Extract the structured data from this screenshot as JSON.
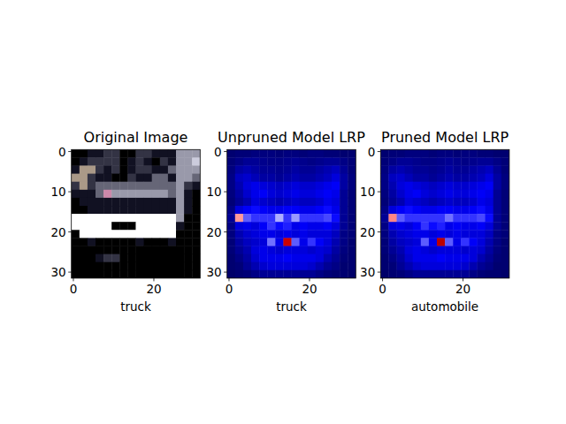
{
  "chart_data": [
    {
      "type": "image",
      "title": "Original Image",
      "x_label": "truck",
      "xlim": [
        -0.5,
        31.5
      ],
      "ylim": [
        31.5,
        -0.5
      ],
      "xticks": [
        0,
        20
      ],
      "yticks": [
        0,
        10,
        20,
        30
      ],
      "cells": [
        [
          "#000",
          "#000",
          "#112",
          "#112",
          "#334",
          "#334",
          "#000",
          "#000",
          "#334",
          "#334",
          "#112",
          "#112",
          "#112",
          "#99a",
          "#99a",
          "#99a"
        ],
        [
          "#000",
          "#112",
          "#334",
          "#334",
          "#334",
          "#334",
          "#000",
          "#112",
          "#334",
          "#112",
          "#000",
          "#334",
          "#112",
          "#99a",
          "#99a",
          "#ccd"
        ],
        [
          "#112",
          "#a98",
          "#a98",
          "#334",
          "#112",
          "#334",
          "#000",
          "#112",
          "#334",
          "#334",
          "#112",
          "#112",
          "#667",
          "#99a",
          "#99a",
          "#99a"
        ],
        [
          "#a98",
          "#a98",
          "#334",
          "#112",
          "#112",
          "#000",
          "#000",
          "#334",
          "#112",
          "#112",
          "#667",
          "#667",
          "#112",
          "#99a",
          "#99a",
          "#667"
        ],
        [
          "#334",
          "#a98",
          "#334",
          "#667",
          "#667",
          "#667",
          "#667",
          "#667",
          "#667",
          "#667",
          "#667",
          "#667",
          "#667",
          "#99a",
          "#334",
          "#112"
        ],
        [
          "#112",
          "#112",
          "#112",
          "#667",
          "#c8a",
          "#99a",
          "#99a",
          "#99a",
          "#99a",
          "#99a",
          "#99a",
          "#99a",
          "#667",
          "#99a",
          "#112",
          "#000"
        ],
        [
          "#000",
          "#112",
          "#112",
          "#112",
          "#112",
          "#112",
          "#112",
          "#112",
          "#112",
          "#112",
          "#112",
          "#112",
          "#112",
          "#99a",
          "#112",
          "#000"
        ],
        [
          "#000",
          "#000",
          "#112",
          "#112",
          "#112",
          "#112",
          "#112",
          "#112",
          "#112",
          "#112",
          "#112",
          "#112",
          "#112",
          "#99a",
          "#112",
          "#000"
        ],
        [
          "#fff",
          "#fff",
          "#fff",
          "#fff",
          "#fff",
          "#fff",
          "#fff",
          "#fff",
          "#fff",
          "#fff",
          "#fff",
          "#fff",
          "#fff",
          "#99a",
          "#000",
          "#000"
        ],
        [
          "#fff",
          "#fff",
          "#fff",
          "#fff",
          "#fff",
          "#000",
          "#000",
          "#000",
          "#fff",
          "#fff",
          "#fff",
          "#fff",
          "#fff",
          "#112",
          "#000",
          "#000"
        ],
        [
          "#000",
          "#fff",
          "#fff",
          "#fff",
          "#fff",
          "#fff",
          "#fff",
          "#fff",
          "#fff",
          "#fff",
          "#fff",
          "#fff",
          "#fff",
          "#000",
          "#000",
          "#000"
        ],
        [
          "#000",
          "#000",
          "#112",
          "#000",
          "#000",
          "#000",
          "#000",
          "#000",
          "#112",
          "#000",
          "#000",
          "#000",
          "#112",
          "#000",
          "#000",
          "#000"
        ],
        [
          "#000",
          "#000",
          "#000",
          "#000",
          "#000",
          "#000",
          "#000",
          "#000",
          "#000",
          "#000",
          "#000",
          "#000",
          "#000",
          "#000",
          "#000",
          "#000"
        ],
        [
          "#000",
          "#000",
          "#000",
          "#112",
          "#334",
          "#334",
          "#000",
          "#000",
          "#000",
          "#000",
          "#000",
          "#000",
          "#000",
          "#000",
          "#000",
          "#000"
        ],
        [
          "#000",
          "#000",
          "#000",
          "#000",
          "#000",
          "#000",
          "#000",
          "#000",
          "#000",
          "#000",
          "#000",
          "#000",
          "#000",
          "#000",
          "#000",
          "#000"
        ],
        [
          "#000",
          "#000",
          "#000",
          "#000",
          "#000",
          "#000",
          "#000",
          "#000",
          "#000",
          "#000",
          "#000",
          "#000",
          "#000",
          "#000",
          "#000",
          "#000"
        ]
      ]
    },
    {
      "type": "heatmap",
      "title": "Unpruned Model LRP",
      "x_label": "truck",
      "xlim": [
        -0.5,
        31.5
      ],
      "ylim": [
        31.5,
        -0.5
      ],
      "xticks": [
        0,
        20
      ],
      "yticks": [
        0,
        10,
        20,
        30
      ],
      "color_range": [
        0,
        1
      ],
      "cells": [
        [
          0.05,
          0.06,
          0.06,
          0.07,
          0.07,
          0.07,
          0.06,
          0.07,
          0.07,
          0.06,
          0.07,
          0.07,
          0.06,
          0.06,
          0.05,
          0.05
        ],
        [
          0.06,
          0.08,
          0.1,
          0.1,
          0.09,
          0.08,
          0.08,
          0.09,
          0.1,
          0.09,
          0.08,
          0.09,
          0.1,
          0.1,
          0.08,
          0.06
        ],
        [
          0.07,
          0.12,
          0.14,
          0.12,
          0.1,
          0.1,
          0.09,
          0.1,
          0.12,
          0.1,
          0.1,
          0.12,
          0.14,
          0.16,
          0.1,
          0.06
        ],
        [
          0.08,
          0.16,
          0.18,
          0.15,
          0.12,
          0.12,
          0.1,
          0.12,
          0.14,
          0.12,
          0.12,
          0.14,
          0.16,
          0.2,
          0.12,
          0.07
        ],
        [
          0.08,
          0.14,
          0.2,
          0.22,
          0.2,
          0.18,
          0.16,
          0.18,
          0.2,
          0.18,
          0.18,
          0.2,
          0.22,
          0.24,
          0.12,
          0.07
        ],
        [
          0.07,
          0.12,
          0.18,
          0.22,
          0.24,
          0.2,
          0.18,
          0.2,
          0.22,
          0.2,
          0.2,
          0.22,
          0.24,
          0.22,
          0.1,
          0.06
        ],
        [
          0.06,
          0.1,
          0.14,
          0.2,
          0.18,
          0.16,
          0.14,
          0.16,
          0.18,
          0.16,
          0.16,
          0.18,
          0.22,
          0.2,
          0.1,
          0.06
        ],
        [
          0.08,
          0.2,
          0.24,
          0.26,
          0.24,
          0.22,
          0.22,
          0.24,
          0.24,
          0.22,
          0.22,
          0.24,
          0.26,
          0.22,
          0.1,
          0.06
        ],
        [
          0.1,
          0.6,
          0.34,
          0.3,
          0.3,
          0.3,
          0.42,
          0.3,
          0.4,
          0.3,
          0.3,
          0.3,
          0.32,
          0.26,
          0.1,
          0.06
        ],
        [
          0.08,
          0.2,
          0.22,
          0.2,
          0.24,
          0.3,
          0.26,
          0.28,
          0.22,
          0.24,
          0.22,
          0.22,
          0.24,
          0.2,
          0.1,
          0.06
        ],
        [
          0.07,
          0.14,
          0.18,
          0.2,
          0.22,
          0.22,
          0.2,
          0.22,
          0.2,
          0.22,
          0.2,
          0.2,
          0.2,
          0.16,
          0.08,
          0.06
        ],
        [
          0.06,
          0.12,
          0.16,
          0.18,
          0.2,
          0.36,
          0.22,
          0.85,
          0.34,
          0.22,
          0.3,
          0.24,
          0.2,
          0.14,
          0.08,
          0.05
        ],
        [
          0.06,
          0.1,
          0.14,
          0.2,
          0.22,
          0.2,
          0.18,
          0.2,
          0.2,
          0.2,
          0.18,
          0.2,
          0.18,
          0.12,
          0.07,
          0.05
        ],
        [
          0.05,
          0.08,
          0.12,
          0.18,
          0.22,
          0.22,
          0.22,
          0.24,
          0.22,
          0.22,
          0.22,
          0.2,
          0.14,
          0.1,
          0.06,
          0.05
        ],
        [
          0.05,
          0.06,
          0.1,
          0.14,
          0.18,
          0.2,
          0.2,
          0.2,
          0.2,
          0.2,
          0.18,
          0.14,
          0.1,
          0.08,
          0.05,
          0.05
        ],
        [
          0.04,
          0.05,
          0.06,
          0.08,
          0.1,
          0.1,
          0.1,
          0.1,
          0.1,
          0.1,
          0.1,
          0.08,
          0.06,
          0.05,
          0.05,
          0.04
        ]
      ]
    },
    {
      "type": "heatmap",
      "title": "Pruned Model LRP",
      "x_label": "automobile",
      "xlim": [
        -0.5,
        31.5
      ],
      "ylim": [
        31.5,
        -0.5
      ],
      "xticks": [
        0,
        20
      ],
      "yticks": [
        0,
        10,
        20,
        30
      ],
      "color_range": [
        0,
        1
      ],
      "cells": [
        [
          0.05,
          0.06,
          0.06,
          0.07,
          0.07,
          0.07,
          0.06,
          0.07,
          0.07,
          0.06,
          0.07,
          0.07,
          0.06,
          0.06,
          0.05,
          0.05
        ],
        [
          0.06,
          0.08,
          0.1,
          0.1,
          0.09,
          0.08,
          0.08,
          0.09,
          0.1,
          0.09,
          0.08,
          0.09,
          0.1,
          0.1,
          0.08,
          0.06
        ],
        [
          0.07,
          0.12,
          0.14,
          0.12,
          0.1,
          0.1,
          0.09,
          0.1,
          0.12,
          0.1,
          0.1,
          0.12,
          0.14,
          0.16,
          0.1,
          0.06
        ],
        [
          0.08,
          0.16,
          0.18,
          0.15,
          0.12,
          0.12,
          0.1,
          0.12,
          0.14,
          0.12,
          0.12,
          0.14,
          0.16,
          0.2,
          0.12,
          0.07
        ],
        [
          0.08,
          0.14,
          0.2,
          0.22,
          0.2,
          0.18,
          0.16,
          0.18,
          0.2,
          0.18,
          0.18,
          0.2,
          0.22,
          0.24,
          0.12,
          0.07
        ],
        [
          0.07,
          0.12,
          0.18,
          0.22,
          0.24,
          0.2,
          0.18,
          0.2,
          0.22,
          0.2,
          0.2,
          0.22,
          0.24,
          0.22,
          0.1,
          0.06
        ],
        [
          0.06,
          0.1,
          0.14,
          0.2,
          0.18,
          0.16,
          0.14,
          0.16,
          0.18,
          0.16,
          0.16,
          0.18,
          0.22,
          0.2,
          0.1,
          0.06
        ],
        [
          0.08,
          0.2,
          0.24,
          0.26,
          0.24,
          0.22,
          0.22,
          0.24,
          0.24,
          0.22,
          0.22,
          0.24,
          0.26,
          0.22,
          0.1,
          0.06
        ],
        [
          0.1,
          0.62,
          0.34,
          0.3,
          0.3,
          0.3,
          0.3,
          0.3,
          0.36,
          0.3,
          0.3,
          0.3,
          0.32,
          0.26,
          0.1,
          0.06
        ],
        [
          0.08,
          0.2,
          0.22,
          0.2,
          0.24,
          0.3,
          0.26,
          0.28,
          0.22,
          0.24,
          0.22,
          0.22,
          0.24,
          0.2,
          0.1,
          0.06
        ],
        [
          0.07,
          0.14,
          0.18,
          0.2,
          0.22,
          0.22,
          0.2,
          0.22,
          0.2,
          0.22,
          0.2,
          0.2,
          0.2,
          0.16,
          0.08,
          0.06
        ],
        [
          0.06,
          0.12,
          0.16,
          0.18,
          0.2,
          0.34,
          0.22,
          0.88,
          0.34,
          0.22,
          0.3,
          0.24,
          0.2,
          0.14,
          0.08,
          0.05
        ],
        [
          0.06,
          0.1,
          0.14,
          0.2,
          0.22,
          0.2,
          0.18,
          0.2,
          0.2,
          0.2,
          0.18,
          0.2,
          0.18,
          0.12,
          0.07,
          0.05
        ],
        [
          0.05,
          0.08,
          0.12,
          0.18,
          0.22,
          0.22,
          0.22,
          0.24,
          0.22,
          0.22,
          0.22,
          0.2,
          0.14,
          0.1,
          0.06,
          0.05
        ],
        [
          0.05,
          0.06,
          0.1,
          0.14,
          0.18,
          0.2,
          0.2,
          0.2,
          0.2,
          0.2,
          0.18,
          0.14,
          0.1,
          0.08,
          0.05,
          0.05
        ],
        [
          0.04,
          0.05,
          0.06,
          0.08,
          0.1,
          0.1,
          0.1,
          0.1,
          0.1,
          0.1,
          0.1,
          0.08,
          0.06,
          0.05,
          0.05,
          0.04
        ]
      ]
    }
  ]
}
